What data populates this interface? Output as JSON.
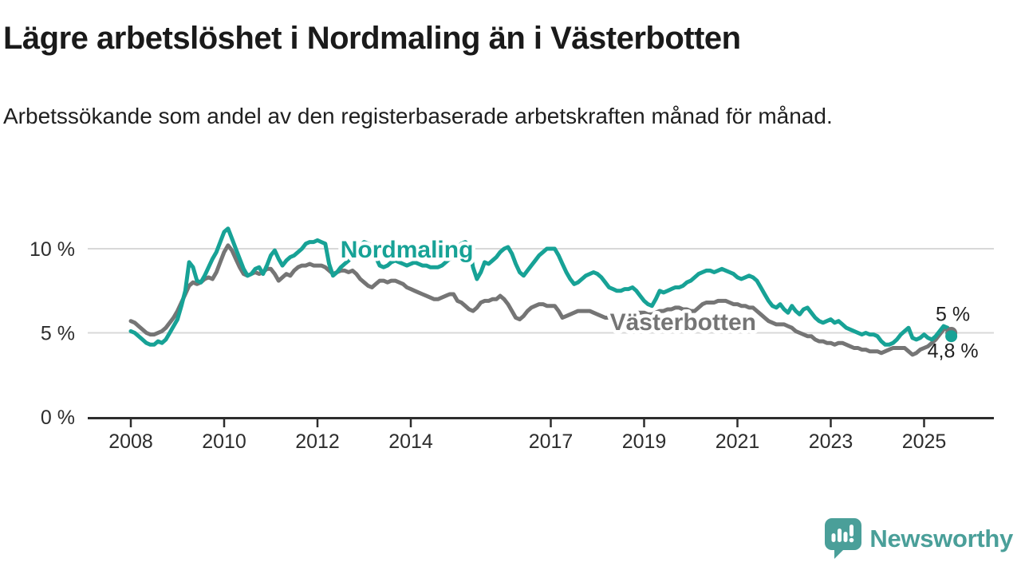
{
  "page": {
    "title": "Lägre arbetslöshet i Nordmaling än i Västerbotten",
    "subtitle": "Arbetssökande som andel av den registerbaserade arbetskraften månad för månad."
  },
  "branding": {
    "logo_text": "Newsworthy",
    "logo_icon": "chart-bars-speech-bubble",
    "logo_color": "#4a9f99"
  },
  "colors": {
    "nordmaling_teal": "#17a296",
    "vasterbotten_gray": "#757575",
    "gridline": "#d8d8d8",
    "axis": "#2d2d2d",
    "tick_label": "#2d2d2d",
    "end_value_label": "#1f1f1f",
    "background": "#ffffff"
  },
  "chart_data": {
    "type": "line",
    "x_unit": "month",
    "x_start": "2008-01",
    "x_end": "2025-08",
    "grid": "horizontal",
    "legend_position": "inline-labels",
    "ylim": [
      0,
      11.5
    ],
    "y_ticks": [
      {
        "value": 0,
        "label": "0 %"
      },
      {
        "value": 5,
        "label": "5 %"
      },
      {
        "value": 10,
        "label": "10 %"
      }
    ],
    "x_ticks": [
      {
        "year": 2008,
        "label": "2008"
      },
      {
        "year": 2010,
        "label": "2010"
      },
      {
        "year": 2012,
        "label": "2012"
      },
      {
        "year": 2014,
        "label": "2014"
      },
      {
        "year": 2017,
        "label": "2017"
      },
      {
        "year": 2019,
        "label": "2019"
      },
      {
        "year": 2021,
        "label": "2021"
      },
      {
        "year": 2023,
        "label": "2023"
      },
      {
        "year": 2025,
        "label": "2025"
      }
    ],
    "series": [
      {
        "name": "Västerbotten",
        "slug": "vasterbotten",
        "color": "#757575",
        "end_label": "5 %",
        "end_label_side": "above",
        "inline_label": {
          "month_index": 142,
          "value": 5.64
        },
        "values": [
          5.7,
          5.6,
          5.4,
          5.2,
          5.0,
          4.9,
          4.9,
          5.0,
          5.1,
          5.3,
          5.6,
          5.9,
          6.3,
          6.8,
          7.3,
          7.8,
          8.0,
          7.9,
          8.0,
          8.2,
          8.3,
          8.2,
          8.6,
          9.2,
          9.8,
          10.2,
          9.9,
          9.4,
          8.9,
          8.5,
          8.4,
          8.5,
          8.6,
          8.5,
          8.6,
          8.8,
          8.8,
          8.5,
          8.1,
          8.3,
          8.5,
          8.4,
          8.7,
          8.9,
          9.0,
          9.0,
          9.1,
          9.0,
          9.0,
          9.0,
          8.9,
          8.7,
          8.5,
          8.6,
          8.7,
          8.7,
          8.6,
          8.7,
          8.5,
          8.2,
          8.0,
          7.8,
          7.7,
          7.9,
          8.1,
          8.1,
          8.0,
          8.1,
          8.1,
          8.0,
          7.9,
          7.7,
          7.6,
          7.5,
          7.4,
          7.3,
          7.2,
          7.1,
          7.0,
          7.0,
          7.1,
          7.2,
          7.3,
          7.3,
          6.9,
          6.8,
          6.6,
          6.4,
          6.3,
          6.5,
          6.8,
          6.9,
          6.9,
          7.0,
          7.0,
          7.2,
          7.0,
          6.7,
          6.3,
          5.9,
          5.8,
          6.0,
          6.3,
          6.5,
          6.6,
          6.7,
          6.7,
          6.6,
          6.6,
          6.6,
          6.3,
          5.9,
          6.0,
          6.1,
          6.2,
          6.3,
          6.3,
          6.3,
          6.3,
          6.2,
          6.1,
          6.0,
          5.9,
          5.9,
          5.8,
          5.9,
          6.0,
          6.0,
          6.1,
          6.1,
          6.2,
          6.2,
          6.2,
          6.1,
          6.1,
          6.2,
          6.3,
          6.3,
          6.4,
          6.4,
          6.5,
          6.5,
          6.4,
          6.4,
          6.3,
          6.3,
          6.5,
          6.7,
          6.8,
          6.8,
          6.8,
          6.9,
          6.9,
          6.9,
          6.8,
          6.7,
          6.7,
          6.6,
          6.6,
          6.5,
          6.5,
          6.3,
          6.1,
          5.9,
          5.7,
          5.6,
          5.5,
          5.5,
          5.5,
          5.4,
          5.3,
          5.1,
          5.0,
          4.9,
          4.8,
          4.8,
          4.6,
          4.5,
          4.5,
          4.4,
          4.4,
          4.3,
          4.4,
          4.4,
          4.3,
          4.2,
          4.1,
          4.1,
          4.0,
          4.0,
          3.9,
          3.9,
          3.9,
          3.8,
          3.9,
          4.0,
          4.1,
          4.1,
          4.1,
          4.1,
          3.9,
          3.7,
          3.8,
          4.0,
          4.1,
          4.2,
          4.4,
          4.6,
          4.9,
          5.2,
          5.3,
          5.0
        ]
      },
      {
        "name": "Nordmaling",
        "slug": "nordmaling",
        "color": "#17a296",
        "end_label": "4,8 %",
        "end_label_side": "below",
        "inline_label": {
          "month_index": 71,
          "value": 9.95
        },
        "values": [
          5.1,
          5.0,
          4.8,
          4.6,
          4.4,
          4.3,
          4.3,
          4.5,
          4.4,
          4.6,
          5.0,
          5.4,
          5.8,
          6.6,
          7.5,
          9.2,
          8.9,
          8.1,
          8.0,
          8.4,
          8.9,
          9.4,
          9.8,
          10.4,
          11.0,
          11.2,
          10.6,
          10.0,
          9.4,
          8.8,
          8.4,
          8.5,
          8.8,
          8.9,
          8.5,
          9.0,
          9.6,
          9.9,
          9.4,
          9.0,
          9.3,
          9.5,
          9.6,
          9.8,
          10.0,
          10.3,
          10.4,
          10.4,
          10.5,
          10.4,
          10.3,
          9.1,
          8.4,
          8.6,
          8.9,
          9.1,
          9.3,
          9.6,
          9.9,
          10.2,
          10.4,
          10.3,
          10.2,
          9.5,
          9.0,
          8.9,
          9.0,
          9.2,
          9.3,
          9.2,
          9.1,
          9.0,
          9.1,
          9.2,
          9.1,
          9.0,
          9.0,
          8.9,
          8.9,
          8.9,
          9.0,
          9.2,
          9.4,
          9.7,
          10.1,
          10.3,
          10.4,
          10.2,
          8.9,
          8.2,
          8.6,
          9.2,
          9.1,
          9.3,
          9.5,
          9.8,
          10.0,
          10.1,
          9.7,
          9.1,
          8.6,
          8.4,
          8.7,
          9.0,
          9.3,
          9.6,
          9.8,
          10.0,
          10.0,
          10.0,
          9.6,
          9.1,
          8.6,
          8.2,
          7.9,
          8.0,
          8.2,
          8.4,
          8.5,
          8.6,
          8.5,
          8.3,
          8.0,
          7.7,
          7.6,
          7.5,
          7.5,
          7.6,
          7.6,
          7.7,
          7.5,
          7.2,
          6.9,
          6.7,
          6.6,
          7.0,
          7.5,
          7.4,
          7.5,
          7.6,
          7.7,
          7.7,
          7.8,
          8.0,
          8.1,
          8.3,
          8.5,
          8.6,
          8.7,
          8.7,
          8.6,
          8.7,
          8.8,
          8.7,
          8.6,
          8.5,
          8.3,
          8.2,
          8.3,
          8.4,
          8.3,
          8.1,
          7.7,
          7.3,
          6.9,
          6.6,
          6.5,
          6.7,
          6.4,
          6.2,
          6.6,
          6.3,
          6.1,
          6.4,
          6.5,
          6.2,
          5.9,
          5.7,
          5.6,
          5.7,
          5.8,
          5.6,
          5.7,
          5.5,
          5.3,
          5.2,
          5.1,
          5.0,
          4.9,
          5.0,
          4.9,
          4.9,
          4.8,
          4.5,
          4.3,
          4.3,
          4.4,
          4.6,
          4.9,
          5.1,
          5.3,
          4.7,
          4.6,
          4.7,
          4.9,
          4.7,
          4.6,
          4.8,
          5.1,
          5.4,
          5.3,
          4.8
        ]
      }
    ]
  }
}
